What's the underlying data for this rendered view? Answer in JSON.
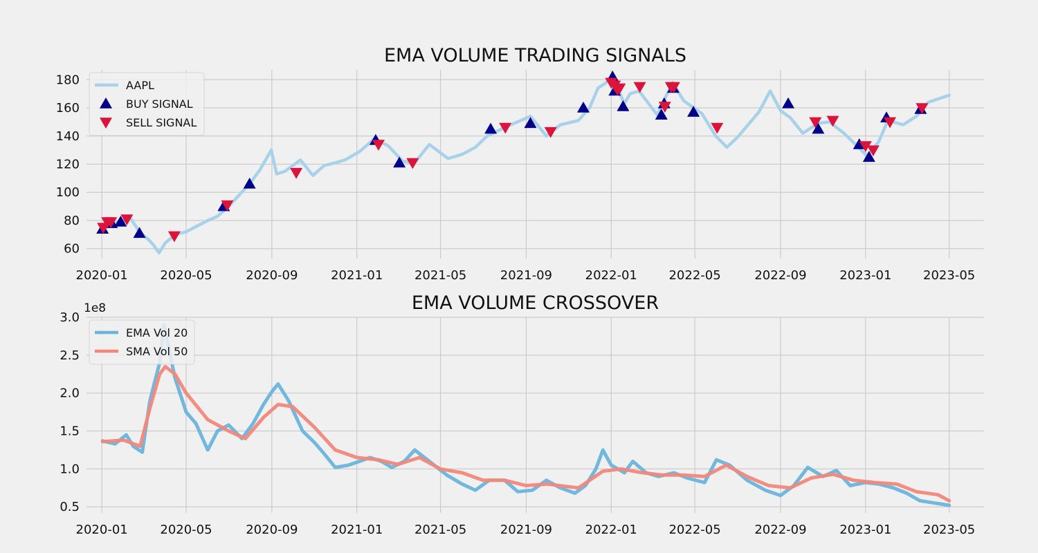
{
  "chart_data": [
    {
      "type": "line",
      "title": "EMA VOLUME TRADING SIGNALS",
      "xlabel": "",
      "ylabel": "",
      "x_tick_labels": [
        "2020-01",
        "2020-05",
        "2020-09",
        "2021-01",
        "2021-05",
        "2021-09",
        "2022-01",
        "2022-05",
        "2022-09",
        "2023-01",
        "2023-05"
      ],
      "y_ticks": [
        60,
        80,
        100,
        120,
        140,
        160,
        180
      ],
      "xlim": [
        "2019-12-10",
        "2023-06-20"
      ],
      "ylim": [
        53,
        187
      ],
      "grid": true,
      "legend_position": "top-left",
      "series": [
        {
          "name": "AAPL",
          "color": "#a8d1ea",
          "x": [
            "2020-01-02",
            "2020-01-24",
            "2020-02-12",
            "2020-02-24",
            "2020-03-09",
            "2020-03-16",
            "2020-03-23",
            "2020-04-01",
            "2020-04-15",
            "2020-05-01",
            "2020-06-01",
            "2020-06-15",
            "2020-07-01",
            "2020-07-31",
            "2020-08-15",
            "2020-08-31",
            "2020-09-08",
            "2020-09-20",
            "2020-10-12",
            "2020-10-30",
            "2020-11-15",
            "2020-12-01",
            "2020-12-15",
            "2021-01-05",
            "2021-01-26",
            "2021-02-15",
            "2021-03-08",
            "2021-03-25",
            "2021-04-15",
            "2021-05-12",
            "2021-06-01",
            "2021-06-20",
            "2021-07-07",
            "2021-08-01",
            "2021-09-07",
            "2021-09-30",
            "2021-10-20",
            "2021-11-15",
            "2021-12-01",
            "2021-12-13",
            "2022-01-03",
            "2022-01-20",
            "2022-01-28",
            "2022-02-10",
            "2022-03-08",
            "2022-03-30",
            "2022-04-15",
            "2022-05-11",
            "2022-05-31",
            "2022-06-16",
            "2022-07-01",
            "2022-08-01",
            "2022-08-17",
            "2022-09-01",
            "2022-09-15",
            "2022-10-03",
            "2022-10-25",
            "2022-11-10",
            "2022-12-01",
            "2023-01-03",
            "2023-01-20",
            "2023-02-02",
            "2023-02-24",
            "2023-03-15",
            "2023-04-01",
            "2023-05-01"
          ],
          "values": [
            74,
            79,
            81,
            72,
            66,
            62,
            57,
            64,
            70,
            72,
            80,
            83,
            90,
            106,
            116,
            130,
            113,
            115,
            123,
            112,
            119,
            121,
            123,
            129,
            138,
            133,
            122,
            121,
            134,
            124,
            127,
            132,
            140,
            146,
            154,
            140,
            148,
            151,
            160,
            174,
            181,
            163,
            170,
            172,
            155,
            178,
            165,
            156,
            140,
            132,
            139,
            157,
            172,
            158,
            153,
            142,
            149,
            150,
            142,
            126,
            136,
            151,
            148,
            154,
            164,
            169
          ]
        }
      ],
      "markers": [
        {
          "name": "BUY SIGNAL",
          "color": "#00008b",
          "shape": "triangle-up",
          "x": [
            "2020-01-02",
            "2020-01-15",
            "2020-01-28",
            "2020-02-24",
            "2020-06-24",
            "2020-07-31",
            "2021-01-28",
            "2021-03-03",
            "2021-07-12",
            "2021-09-07",
            "2021-11-22",
            "2022-01-03",
            "2022-01-06",
            "2022-01-18",
            "2022-03-14",
            "2022-03-18",
            "2022-03-31",
            "2022-04-29",
            "2022-09-12",
            "2022-10-25",
            "2022-12-23",
            "2023-01-06",
            "2023-01-31",
            "2023-03-21"
          ],
          "values": [
            74,
            78,
            79,
            71,
            90,
            106,
            137,
            121,
            145,
            149,
            160,
            182,
            172,
            161,
            155,
            163,
            174,
            157,
            163,
            145,
            134,
            125,
            153,
            159
          ]
        },
        {
          "name": "SELL SIGNAL",
          "color": "#dc143c",
          "shape": "triangle-down",
          "x": [
            "2020-01-03",
            "2020-01-09",
            "2020-01-14",
            "2020-02-06",
            "2020-04-14",
            "2020-06-29",
            "2020-10-06",
            "2021-02-01",
            "2021-03-22",
            "2021-08-02",
            "2021-10-06",
            "2022-01-01",
            "2022-01-06",
            "2022-01-10",
            "2022-01-13",
            "2022-02-11",
            "2022-03-19",
            "2022-03-28",
            "2022-04-01",
            "2022-06-02",
            "2022-10-21",
            "2022-11-15",
            "2023-01-01",
            "2023-01-12",
            "2023-02-05",
            "2023-03-23"
          ],
          "values": [
            75,
            79,
            79,
            81,
            69,
            91,
            114,
            134,
            121,
            146,
            143,
            178,
            176,
            173,
            174,
            175,
            161,
            175,
            175,
            146,
            150,
            151,
            133,
            130,
            150,
            160
          ]
        }
      ]
    },
    {
      "type": "line",
      "title": "EMA VOLUME CROSSOVER",
      "xlabel": "",
      "ylabel": "",
      "y_offset_label": "1e8",
      "x_tick_labels": [
        "2020-01",
        "2020-05",
        "2020-09",
        "2021-01",
        "2021-05",
        "2021-09",
        "2022-01",
        "2022-05",
        "2022-09",
        "2023-01",
        "2023-05"
      ],
      "y_tick_labels": [
        "0.5",
        "1.0",
        "1.5",
        "2.0",
        "2.5",
        "3.0"
      ],
      "y_ticks": [
        0.5,
        1.0,
        1.5,
        2.0,
        2.5,
        3.0
      ],
      "xlim": [
        "2019-12-10",
        "2023-06-20"
      ],
      "ylim": [
        0.42,
        3.0
      ],
      "grid": true,
      "legend_position": "top-left",
      "series": [
        {
          "name": "EMA Vol 20",
          "color": "#6ab4dc",
          "x": [
            "2020-01-02",
            "2020-01-20",
            "2020-02-05",
            "2020-02-15",
            "2020-02-28",
            "2020-03-10",
            "2020-03-24",
            "2020-03-30",
            "2020-04-15",
            "2020-05-01",
            "2020-05-15",
            "2020-06-01",
            "2020-06-15",
            "2020-07-01",
            "2020-07-20",
            "2020-08-05",
            "2020-08-20",
            "2020-09-01",
            "2020-09-10",
            "2020-09-25",
            "2020-10-15",
            "2020-11-01",
            "2020-11-15",
            "2020-12-01",
            "2020-12-20",
            "2021-01-05",
            "2021-01-20",
            "2021-02-05",
            "2021-02-20",
            "2021-03-10",
            "2021-03-25",
            "2021-04-15",
            "2021-05-10",
            "2021-06-01",
            "2021-06-20",
            "2021-07-10",
            "2021-08-01",
            "2021-08-20",
            "2021-09-10",
            "2021-09-30",
            "2021-10-20",
            "2021-11-10",
            "2021-11-25",
            "2021-12-10",
            "2021-12-20",
            "2022-01-01",
            "2022-01-20",
            "2022-02-01",
            "2022-02-20",
            "2022-03-10",
            "2022-04-01",
            "2022-04-20",
            "2022-05-15",
            "2022-06-01",
            "2022-06-20",
            "2022-07-15",
            "2022-08-10",
            "2022-09-01",
            "2022-09-20",
            "2022-10-10",
            "2022-11-01",
            "2022-11-20",
            "2022-12-10",
            "2023-01-01",
            "2023-01-20",
            "2023-02-10",
            "2023-03-01",
            "2023-03-20",
            "2023-04-10",
            "2023-05-01"
          ],
          "values": [
            1.37,
            1.33,
            1.45,
            1.3,
            1.22,
            1.9,
            2.4,
            2.9,
            2.2,
            1.75,
            1.6,
            1.25,
            1.5,
            1.58,
            1.4,
            1.6,
            1.85,
            2.02,
            2.12,
            1.9,
            1.5,
            1.35,
            1.2,
            1.02,
            1.05,
            1.1,
            1.15,
            1.1,
            1.02,
            1.1,
            1.25,
            1.1,
            0.92,
            0.8,
            0.72,
            0.85,
            0.85,
            0.7,
            0.72,
            0.85,
            0.75,
            0.68,
            0.78,
            1.0,
            1.25,
            1.05,
            0.95,
            1.1,
            0.95,
            0.9,
            0.95,
            0.88,
            0.82,
            1.12,
            1.05,
            0.85,
            0.72,
            0.65,
            0.78,
            1.02,
            0.9,
            0.98,
            0.78,
            0.82,
            0.8,
            0.75,
            0.68,
            0.58,
            0.55,
            0.52
          ]
        },
        {
          "name": "SMA Vol 50",
          "color": "#f2877a",
          "x": [
            "2020-01-02",
            "2020-02-01",
            "2020-02-25",
            "2020-03-10",
            "2020-03-24",
            "2020-04-01",
            "2020-04-15",
            "2020-05-01",
            "2020-06-01",
            "2020-07-01",
            "2020-07-25",
            "2020-08-20",
            "2020-09-10",
            "2020-10-01",
            "2020-11-01",
            "2020-12-01",
            "2021-01-01",
            "2021-02-01",
            "2021-03-01",
            "2021-04-01",
            "2021-05-01",
            "2021-06-01",
            "2021-07-01",
            "2021-08-01",
            "2021-09-01",
            "2021-10-01",
            "2021-11-15",
            "2021-12-20",
            "2022-01-15",
            "2022-02-15",
            "2022-03-15",
            "2022-04-15",
            "2022-05-15",
            "2022-06-15",
            "2022-07-15",
            "2022-08-15",
            "2022-09-15",
            "2022-10-15",
            "2022-11-15",
            "2022-12-15",
            "2023-01-15",
            "2023-02-15",
            "2023-03-15",
            "2023-04-15",
            "2023-05-01"
          ],
          "values": [
            1.36,
            1.38,
            1.3,
            1.8,
            2.25,
            2.35,
            2.25,
            2.0,
            1.65,
            1.5,
            1.4,
            1.68,
            1.85,
            1.82,
            1.55,
            1.25,
            1.15,
            1.12,
            1.06,
            1.15,
            1.0,
            0.95,
            0.85,
            0.85,
            0.78,
            0.8,
            0.75,
            0.97,
            1.0,
            0.95,
            0.92,
            0.92,
            0.9,
            1.05,
            0.9,
            0.78,
            0.75,
            0.88,
            0.93,
            0.85,
            0.82,
            0.8,
            0.7,
            0.66,
            0.58
          ]
        }
      ]
    }
  ]
}
